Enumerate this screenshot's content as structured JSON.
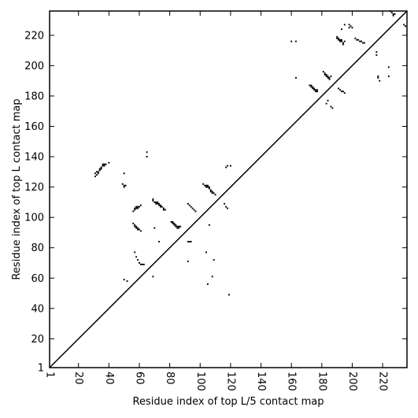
{
  "chart_data": {
    "type": "scatter",
    "title": "",
    "xlabel": "Residue index of top L/5 contact map",
    "ylabel": "Residue index of top L contact map",
    "xlim": [
      1,
      236
    ],
    "ylim": [
      1,
      236
    ],
    "x_ticks": [
      1,
      20,
      40,
      60,
      80,
      100,
      120,
      140,
      160,
      180,
      200,
      220
    ],
    "y_ticks": [
      1,
      20,
      40,
      60,
      80,
      100,
      120,
      140,
      160,
      180,
      200,
      220
    ],
    "diagonal": true,
    "grid": false,
    "legend": "none",
    "marker_color": "#000000",
    "series": [
      {
        "points": [
          [
            31,
            127
          ],
          [
            31,
            129
          ],
          [
            32,
            128
          ],
          [
            32,
            130
          ],
          [
            33,
            129
          ],
          [
            33,
            130
          ],
          [
            34,
            131
          ],
          [
            34,
            132
          ],
          [
            35,
            132
          ],
          [
            35,
            133
          ],
          [
            36,
            134
          ],
          [
            36,
            135
          ],
          [
            37,
            134
          ],
          [
            37,
            135
          ],
          [
            38,
            135
          ],
          [
            40,
            136
          ],
          [
            49,
            122
          ],
          [
            50,
            120
          ],
          [
            50,
            121
          ],
          [
            51,
            121
          ],
          [
            50,
            129
          ],
          [
            50,
            59
          ],
          [
            52,
            58
          ],
          [
            65,
            140
          ],
          [
            65,
            143
          ],
          [
            56,
            104
          ],
          [
            57,
            105
          ],
          [
            57,
            106
          ],
          [
            58,
            106
          ],
          [
            58,
            107
          ],
          [
            59,
            106
          ],
          [
            59,
            107
          ],
          [
            60,
            107
          ],
          [
            61,
            108
          ],
          [
            56,
            96
          ],
          [
            57,
            94
          ],
          [
            57,
            95
          ],
          [
            58,
            93
          ],
          [
            58,
            94
          ],
          [
            59,
            92
          ],
          [
            59,
            93
          ],
          [
            60,
            92
          ],
          [
            61,
            91
          ],
          [
            57,
            77
          ],
          [
            58,
            74
          ],
          [
            59,
            72
          ],
          [
            60,
            70
          ],
          [
            61,
            69
          ],
          [
            62,
            69
          ],
          [
            63,
            69
          ],
          [
            69,
            61
          ],
          [
            70,
            93
          ],
          [
            73,
            84
          ],
          [
            69,
            111
          ],
          [
            69,
            112
          ],
          [
            70,
            110
          ],
          [
            71,
            109
          ],
          [
            71,
            110
          ],
          [
            72,
            109
          ],
          [
            72,
            110
          ],
          [
            73,
            108
          ],
          [
            73,
            109
          ],
          [
            74,
            107
          ],
          [
            74,
            108
          ],
          [
            75,
            107
          ],
          [
            76,
            105
          ],
          [
            76,
            106
          ],
          [
            77,
            105
          ],
          [
            81,
            97
          ],
          [
            82,
            96
          ],
          [
            82,
            97
          ],
          [
            83,
            95
          ],
          [
            83,
            96
          ],
          [
            84,
            94
          ],
          [
            84,
            95
          ],
          [
            85,
            93
          ],
          [
            85,
            94
          ],
          [
            86,
            93
          ],
          [
            86,
            94
          ],
          [
            87,
            94
          ],
          [
            92,
            71
          ],
          [
            92,
            84
          ],
          [
            93,
            84
          ],
          [
            94,
            84
          ],
          [
            92,
            109
          ],
          [
            93,
            108
          ],
          [
            94,
            107
          ],
          [
            95,
            106
          ],
          [
            96,
            105
          ],
          [
            97,
            104
          ],
          [
            102,
            122
          ],
          [
            103,
            121
          ],
          [
            104,
            120
          ],
          [
            104,
            121
          ],
          [
            105,
            120
          ],
          [
            105,
            121
          ],
          [
            106,
            119
          ],
          [
            106,
            120
          ],
          [
            107,
            117
          ],
          [
            107,
            118
          ],
          [
            108,
            116
          ],
          [
            108,
            117
          ],
          [
            109,
            116
          ],
          [
            110,
            115
          ],
          [
            104,
            77
          ],
          [
            105,
            56
          ],
          [
            106,
            95
          ],
          [
            108,
            61
          ],
          [
            109,
            72
          ],
          [
            116,
            109
          ],
          [
            117,
            107
          ],
          [
            118,
            106
          ],
          [
            117,
            133
          ],
          [
            118,
            134
          ],
          [
            119,
            49
          ],
          [
            120,
            134
          ],
          [
            160,
            216
          ],
          [
            163,
            216
          ],
          [
            163,
            192
          ],
          [
            172,
            187
          ],
          [
            173,
            186
          ],
          [
            173,
            187
          ],
          [
            174,
            185
          ],
          [
            174,
            186
          ],
          [
            175,
            184
          ],
          [
            175,
            185
          ],
          [
            176,
            183
          ],
          [
            176,
            184
          ],
          [
            177,
            183
          ],
          [
            177,
            184
          ],
          [
            181,
            196
          ],
          [
            182,
            195
          ],
          [
            182,
            194
          ],
          [
            183,
            194
          ],
          [
            183,
            193
          ],
          [
            184,
            192
          ],
          [
            184,
            193
          ],
          [
            185,
            191
          ],
          [
            185,
            192
          ],
          [
            186,
            193
          ],
          [
            183,
            175
          ],
          [
            184,
            177
          ],
          [
            186,
            173
          ],
          [
            187,
            172
          ],
          [
            190,
            218
          ],
          [
            190,
            219
          ],
          [
            191,
            217
          ],
          [
            191,
            218
          ],
          [
            192,
            216
          ],
          [
            192,
            217
          ],
          [
            193,
            216
          ],
          [
            193,
            217
          ],
          [
            194,
            215
          ],
          [
            194,
            214
          ],
          [
            195,
            216
          ],
          [
            193,
            224
          ],
          [
            195,
            227
          ],
          [
            198,
            227
          ],
          [
            198,
            225
          ],
          [
            199,
            226
          ],
          [
            200,
            225
          ],
          [
            191,
            185
          ],
          [
            192,
            184
          ],
          [
            193,
            183
          ],
          [
            194,
            183
          ],
          [
            195,
            182
          ],
          [
            202,
            218
          ],
          [
            203,
            217
          ],
          [
            204,
            217
          ],
          [
            205,
            216
          ],
          [
            206,
            216
          ],
          [
            207,
            215
          ],
          [
            208,
            215
          ],
          [
            216,
            209
          ],
          [
            216,
            207
          ],
          [
            217,
            192
          ],
          [
            217,
            193
          ],
          [
            218,
            190
          ],
          [
            224,
            193
          ],
          [
            224,
            199
          ],
          [
            225,
            236
          ],
          [
            226,
            235
          ],
          [
            227,
            234
          ],
          [
            227,
            233
          ],
          [
            228,
            234
          ],
          [
            234,
            227
          ],
          [
            235,
            226
          ]
        ]
      }
    ]
  }
}
